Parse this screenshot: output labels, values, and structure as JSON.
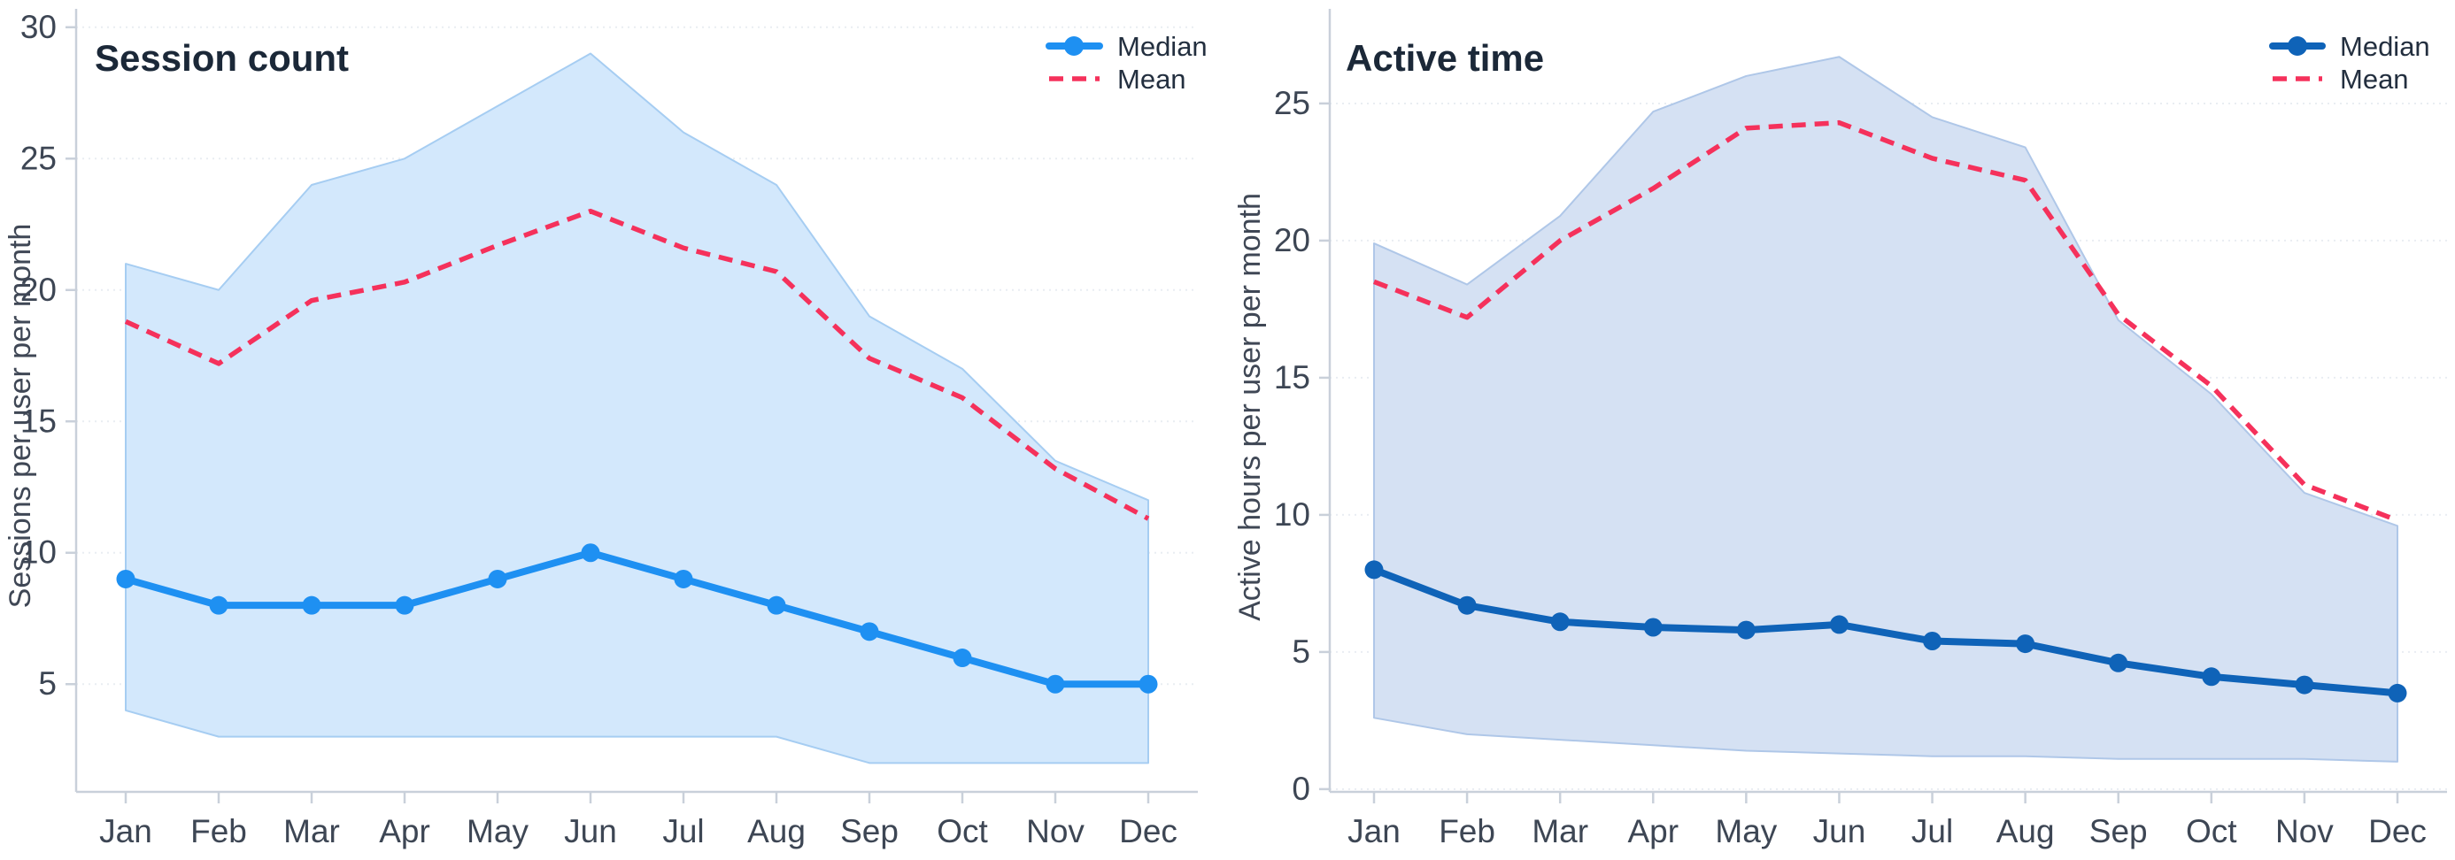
{
  "page": {
    "background": "#ffffff",
    "text_color_title": "#1b2838",
    "text_color_ticks": "#3d4654",
    "text_color_legend": "#232f3f",
    "spine_color": "#c9d0da",
    "grid_color": "#e9edf2"
  },
  "chart_data": [
    {
      "id": "session-count",
      "type": "line",
      "title": "Session count",
      "ylabel": "Sessions per user per month",
      "xlabel": "",
      "categories": [
        "Jan",
        "Feb",
        "Mar",
        "Apr",
        "May",
        "Jun",
        "Jul",
        "Aug",
        "Sep",
        "Oct",
        "Nov",
        "Dec"
      ],
      "yticks": [
        5,
        10,
        15,
        20,
        25,
        30
      ],
      "ylim": [
        0.9,
        30.7
      ],
      "grid": "horizontal-faint",
      "legend_position": "top-right",
      "series": [
        {
          "name": "Median",
          "style": "solid-markers",
          "color": "#1e90f2",
          "values": [
            9,
            8,
            8,
            8,
            9,
            10,
            9,
            8,
            7,
            6,
            5,
            5
          ]
        },
        {
          "name": "Mean",
          "style": "dashed",
          "color": "#f5315b",
          "values": [
            18.8,
            17.2,
            19.6,
            20.3,
            21.7,
            23.0,
            21.6,
            20.7,
            17.4,
            15.9,
            13.2,
            11.3
          ]
        }
      ],
      "band": {
        "name": "range-band",
        "fill": "#d3e8fc",
        "edge": "#a6cdf2",
        "upper": [
          21,
          20,
          24,
          25,
          27,
          29,
          26,
          24,
          19,
          17,
          13.5,
          12
        ],
        "lower": [
          4,
          3,
          3,
          3,
          3,
          3,
          3,
          3,
          2,
          2,
          2,
          2
        ]
      }
    },
    {
      "id": "active-time",
      "type": "line",
      "title": "Active time",
      "ylabel": "Active hours per user per month",
      "xlabel": "",
      "categories": [
        "Jan",
        "Feb",
        "Mar",
        "Apr",
        "May",
        "Jun",
        "Jul",
        "Aug",
        "Sep",
        "Oct",
        "Nov",
        "Dec"
      ],
      "yticks": [
        0,
        5,
        10,
        15,
        20,
        25
      ],
      "ylim": [
        -0.1,
        28.45
      ],
      "grid": "horizontal-faint",
      "legend_position": "top-right",
      "series": [
        {
          "name": "Median",
          "style": "solid-markers",
          "color": "#0f63b8",
          "values": [
            8.0,
            6.7,
            6.1,
            5.9,
            5.8,
            6.0,
            5.4,
            5.3,
            4.6,
            4.1,
            3.8,
            3.5
          ]
        },
        {
          "name": "Mean",
          "style": "dashed",
          "color": "#f5315b",
          "values": [
            18.5,
            17.2,
            20.0,
            21.9,
            24.1,
            24.3,
            23.0,
            22.2,
            17.3,
            14.7,
            11.1,
            9.8
          ]
        }
      ],
      "band": {
        "name": "range-band",
        "fill": "#d5e1f3",
        "edge": "#afc7e8",
        "upper": [
          19.9,
          18.4,
          20.9,
          24.7,
          26.0,
          26.7,
          24.5,
          23.4,
          17.1,
          14.4,
          10.8,
          9.6
        ],
        "lower": [
          2.6,
          2.0,
          1.8,
          1.6,
          1.4,
          1.3,
          1.2,
          1.2,
          1.1,
          1.1,
          1.1,
          1.0
        ]
      }
    }
  ]
}
